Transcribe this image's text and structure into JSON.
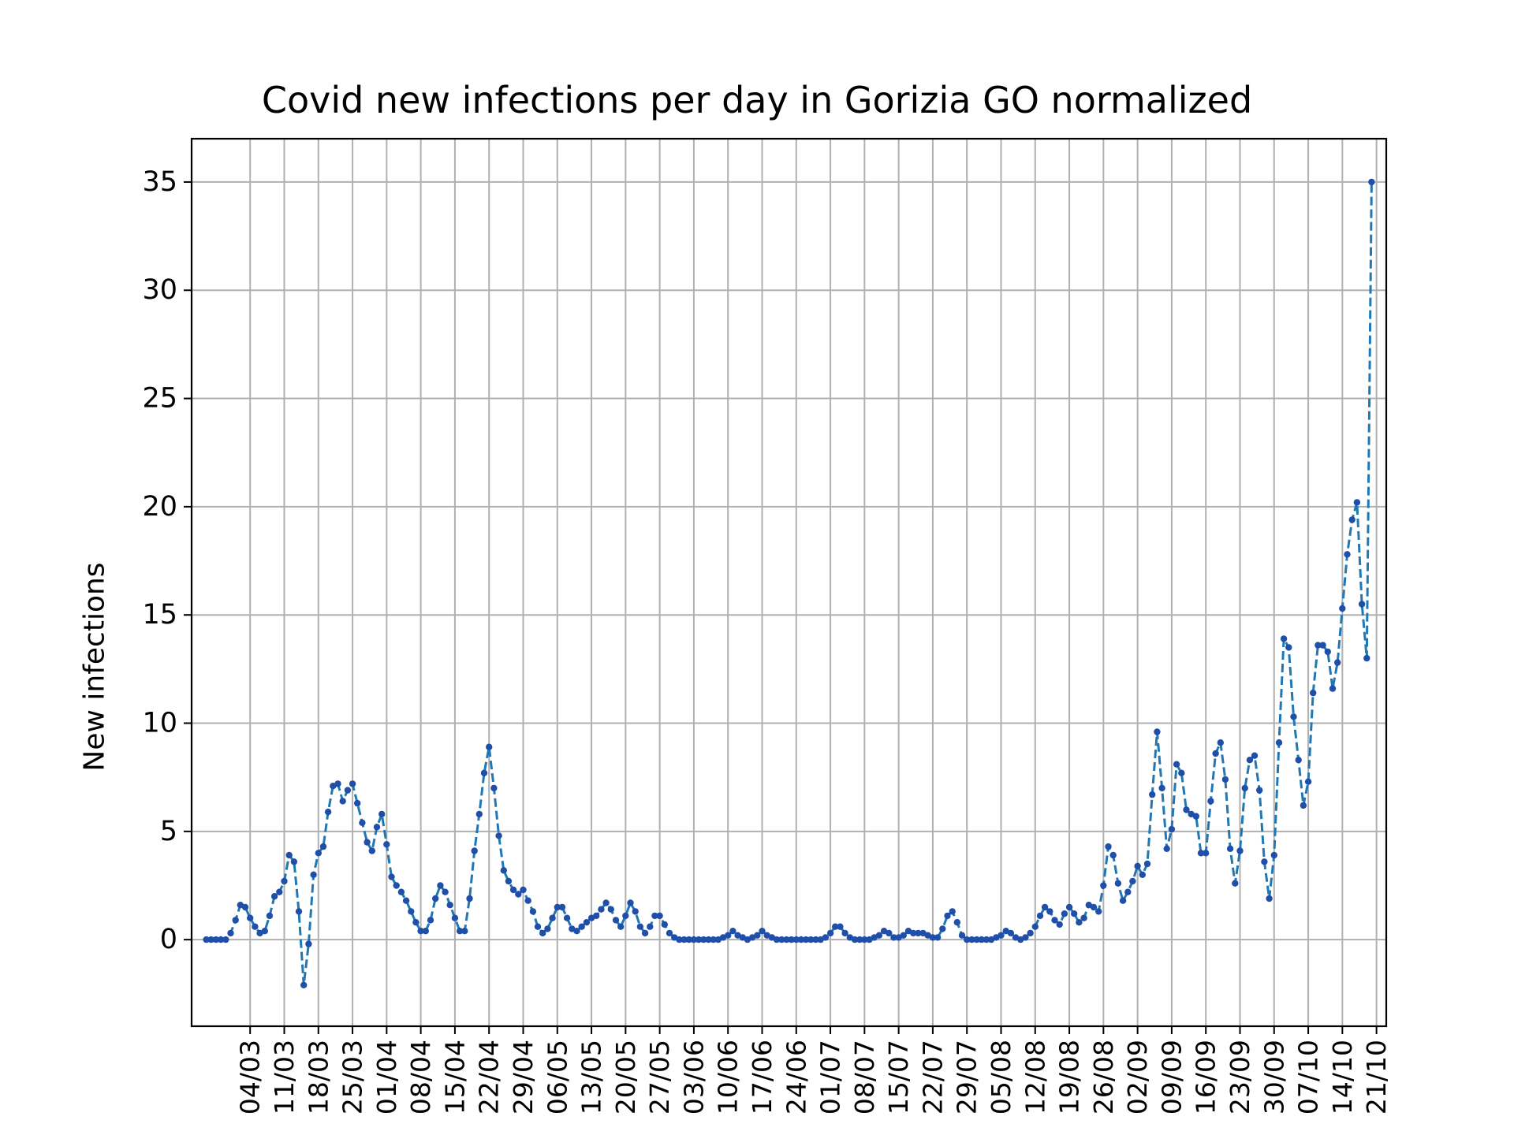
{
  "chart_data": {
    "type": "line",
    "title": "Covid new infections per day in Gorizia GO normalized",
    "xlabel": "",
    "ylabel": "New infections",
    "ylim": [
      -4,
      37
    ],
    "yticks": [
      0,
      5,
      10,
      15,
      20,
      25,
      30,
      35
    ],
    "xlim": [
      "2020-02-21",
      "2020-10-23"
    ],
    "xticks": [
      "04/03",
      "11/03",
      "18/03",
      "25/03",
      "01/04",
      "08/04",
      "15/04",
      "22/04",
      "29/04",
      "06/05",
      "13/05",
      "20/05",
      "27/05",
      "03/06",
      "10/06",
      "17/06",
      "24/06",
      "01/07",
      "08/07",
      "15/07",
      "22/07",
      "29/07",
      "05/08",
      "12/08",
      "19/08",
      "26/08",
      "02/09",
      "09/09",
      "16/09",
      "23/09",
      "30/09",
      "07/10",
      "14/10",
      "21/10"
    ],
    "grid": true,
    "line_color": "#1f77b4",
    "marker_color": "#1f4fa8",
    "line_style": "dashed",
    "marker": "dot",
    "series": [
      {
        "x_start": "2020-02-24",
        "x_end": "2020-10-21",
        "values": [
          0,
          0,
          0,
          0,
          0,
          0.3,
          0.9,
          1.6,
          1.5,
          1.0,
          0.6,
          0.3,
          0.4,
          1.1,
          2.0,
          2.2,
          2.7,
          3.9,
          3.6,
          1.3,
          -2.1,
          -0.2,
          3.0,
          4.0,
          4.3,
          5.9,
          7.1,
          7.2,
          6.4,
          6.9,
          7.2,
          6.3,
          5.4,
          4.5,
          4.1,
          5.2,
          5.8,
          4.4,
          2.9,
          2.5,
          2.2,
          1.8,
          1.3,
          0.8,
          0.4,
          0.4,
          0.9,
          1.9,
          2.5,
          2.2,
          1.6,
          1.0,
          0.4,
          0.4,
          1.9,
          4.1,
          5.8,
          7.7,
          8.9,
          7.0,
          4.8,
          3.2,
          2.7,
          2.3,
          2.1,
          2.3,
          1.8,
          1.3,
          0.6,
          0.3,
          0.5,
          1.0,
          1.5,
          1.5,
          1.0,
          0.5,
          0.4,
          0.6,
          0.8,
          1.0,
          1.1,
          1.4,
          1.7,
          1.4,
          0.9,
          0.6,
          1.1,
          1.7,
          1.3,
          0.6,
          0.3,
          0.6,
          1.1,
          1.1,
          0.7,
          0.3,
          0.1,
          0,
          0,
          0,
          0,
          0,
          0,
          0,
          0,
          0,
          0.1,
          0.2,
          0.4,
          0.2,
          0.1,
          0,
          0.1,
          0.2,
          0.4,
          0.2,
          0.1,
          0,
          0,
          0,
          0,
          0,
          0,
          0,
          0,
          0,
          0,
          0.1,
          0.3,
          0.6,
          0.6,
          0.3,
          0.1,
          0,
          0,
          0,
          0,
          0.1,
          0.2,
          0.4,
          0.3,
          0.1,
          0.1,
          0.2,
          0.4,
          0.3,
          0.3,
          0.3,
          0.2,
          0.1,
          0.1,
          0.5,
          1.1,
          1.3,
          0.8,
          0.2,
          0,
          0,
          0,
          0,
          0,
          0,
          0.1,
          0.2,
          0.4,
          0.3,
          0.1,
          0,
          0.1,
          0.3,
          0.6,
          1.1,
          1.5,
          1.3,
          0.9,
          0.7,
          1.2,
          1.5,
          1.2,
          0.8,
          1.0,
          1.6,
          1.5,
          1.3,
          2.5,
          4.3,
          3.9,
          2.6,
          1.8,
          2.2,
          2.7,
          3.4,
          3.0,
          3.5,
          6.7,
          9.6,
          7.0,
          4.2,
          5.1,
          8.1,
          7.7,
          6.0,
          5.8,
          5.7,
          4.0,
          4.0,
          6.4,
          8.6,
          9.1,
          7.4,
          4.2,
          2.6,
          4.1,
          7.0,
          8.3,
          8.5,
          6.9,
          3.6,
          1.9,
          3.9,
          9.1,
          13.9,
          13.5,
          10.3,
          8.3,
          6.2,
          7.3,
          11.4,
          13.6,
          13.6,
          13.3,
          11.6,
          12.8,
          15.3,
          17.8,
          19.4,
          20.2,
          15.5,
          13.0,
          35.0
        ]
      }
    ]
  }
}
